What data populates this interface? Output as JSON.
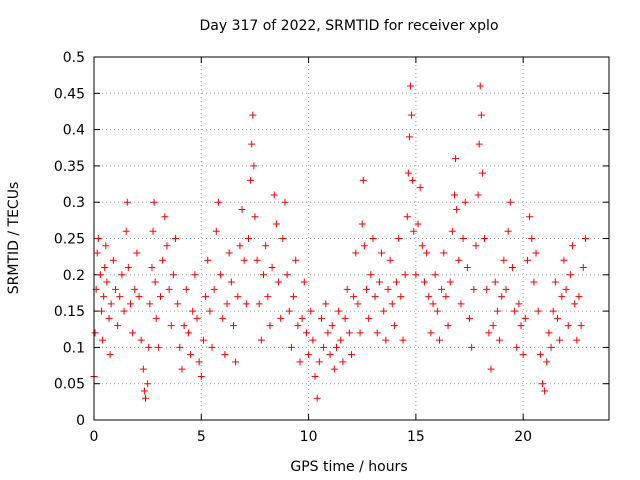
{
  "chart_data": {
    "type": "scatter",
    "title": "Day 317 of 2022, SRMTID for receiver xplo",
    "xlabel": "GPS time / hours",
    "ylabel": "SRMTID / TECUs",
    "xlim": [
      0,
      24
    ],
    "ylim": [
      0,
      0.5
    ],
    "x_ticks": [
      0,
      5,
      10,
      15,
      20
    ],
    "x_tick_labels": [
      "0",
      "5",
      "10",
      "15",
      "20"
    ],
    "y_ticks": [
      0,
      0.05,
      0.1,
      0.15,
      0.2,
      0.25,
      0.3,
      0.35,
      0.4,
      0.45,
      0.5
    ],
    "y_tick_labels": [
      "0",
      "0.05",
      "0.1",
      "0.15",
      "0.2",
      "0.25",
      "0.3",
      "0.35",
      "0.4",
      "0.45",
      "0.5"
    ],
    "grid": true,
    "marker": "plus",
    "marker_color": "#ff0000",
    "series": [
      {
        "name": "SRMTID",
        "points": [
          [
            0.0,
            0.06
          ],
          [
            0.05,
            0.12
          ],
          [
            0.1,
            0.18
          ],
          [
            0.15,
            0.23
          ],
          [
            0.2,
            0.25
          ],
          [
            0.3,
            0.2
          ],
          [
            0.35,
            0.15
          ],
          [
            0.4,
            0.11
          ],
          [
            0.45,
            0.17
          ],
          [
            0.5,
            0.21
          ],
          [
            0.55,
            0.24
          ],
          [
            0.6,
            0.19
          ],
          [
            0.7,
            0.14
          ],
          [
            0.75,
            0.09
          ],
          [
            0.8,
            0.16
          ],
          [
            0.9,
            0.22
          ],
          [
            1.0,
            0.18
          ],
          [
            1.1,
            0.13
          ],
          [
            1.2,
            0.17
          ],
          [
            1.3,
            0.2
          ],
          [
            1.4,
            0.15
          ],
          [
            1.5,
            0.26
          ],
          [
            1.55,
            0.3
          ],
          [
            1.6,
            0.21
          ],
          [
            1.7,
            0.16
          ],
          [
            1.8,
            0.12
          ],
          [
            1.9,
            0.18
          ],
          [
            2.0,
            0.23
          ],
          [
            2.1,
            0.17
          ],
          [
            2.2,
            0.11
          ],
          [
            2.3,
            0.07
          ],
          [
            2.35,
            0.04
          ],
          [
            2.4,
            0.03
          ],
          [
            2.5,
            0.05
          ],
          [
            2.55,
            0.1
          ],
          [
            2.6,
            0.16
          ],
          [
            2.7,
            0.21
          ],
          [
            2.75,
            0.26
          ],
          [
            2.8,
            0.3
          ],
          [
            2.85,
            0.19
          ],
          [
            2.9,
            0.14
          ],
          [
            3.0,
            0.1
          ],
          [
            3.1,
            0.17
          ],
          [
            3.2,
            0.22
          ],
          [
            3.3,
            0.28
          ],
          [
            3.4,
            0.24
          ],
          [
            3.5,
            0.18
          ],
          [
            3.6,
            0.13
          ],
          [
            3.7,
            0.2
          ],
          [
            3.8,
            0.25
          ],
          [
            3.9,
            0.16
          ],
          [
            4.0,
            0.1
          ],
          [
            4.1,
            0.07
          ],
          [
            4.2,
            0.13
          ],
          [
            4.3,
            0.18
          ],
          [
            4.4,
            0.12
          ],
          [
            4.5,
            0.09
          ],
          [
            4.6,
            0.15
          ],
          [
            4.7,
            0.2
          ],
          [
            4.8,
            0.14
          ],
          [
            4.9,
            0.08
          ],
          [
            5.0,
            0.06
          ],
          [
            5.1,
            0.11
          ],
          [
            5.2,
            0.17
          ],
          [
            5.3,
            0.22
          ],
          [
            5.4,
            0.15
          ],
          [
            5.5,
            0.1
          ],
          [
            5.6,
            0.18
          ],
          [
            5.7,
            0.26
          ],
          [
            5.8,
            0.3
          ],
          [
            5.9,
            0.2
          ],
          [
            6.0,
            0.14
          ],
          [
            6.1,
            0.09
          ],
          [
            6.2,
            0.16
          ],
          [
            6.3,
            0.23
          ],
          [
            6.4,
            0.19
          ],
          [
            6.5,
            0.13
          ],
          [
            6.6,
            0.08
          ],
          [
            6.7,
            0.17
          ],
          [
            6.8,
            0.24
          ],
          [
            6.9,
            0.29
          ],
          [
            7.0,
            0.22
          ],
          [
            7.1,
            0.16
          ],
          [
            7.2,
            0.25
          ],
          [
            7.3,
            0.33
          ],
          [
            7.35,
            0.38
          ],
          [
            7.4,
            0.42
          ],
          [
            7.45,
            0.35
          ],
          [
            7.5,
            0.28
          ],
          [
            7.6,
            0.22
          ],
          [
            7.7,
            0.16
          ],
          [
            7.8,
            0.11
          ],
          [
            7.9,
            0.2
          ],
          [
            8.0,
            0.24
          ],
          [
            8.1,
            0.17
          ],
          [
            8.2,
            0.13
          ],
          [
            8.3,
            0.21
          ],
          [
            8.4,
            0.31
          ],
          [
            8.5,
            0.27
          ],
          [
            8.6,
            0.19
          ],
          [
            8.7,
            0.14
          ],
          [
            8.8,
            0.25
          ],
          [
            8.9,
            0.3
          ],
          [
            9.0,
            0.2
          ],
          [
            9.1,
            0.15
          ],
          [
            9.2,
            0.1
          ],
          [
            9.3,
            0.17
          ],
          [
            9.4,
            0.22
          ],
          [
            9.5,
            0.13
          ],
          [
            9.6,
            0.08
          ],
          [
            9.7,
            0.14
          ],
          [
            9.8,
            0.19
          ],
          [
            9.9,
            0.12
          ],
          [
            10.0,
            0.09
          ],
          [
            10.1,
            0.15
          ],
          [
            10.2,
            0.11
          ],
          [
            10.3,
            0.06
          ],
          [
            10.4,
            0.03
          ],
          [
            10.5,
            0.08
          ],
          [
            10.6,
            0.14
          ],
          [
            10.7,
            0.1
          ],
          [
            10.8,
            0.16
          ],
          [
            10.9,
            0.12
          ],
          [
            11.0,
            0.09
          ],
          [
            11.1,
            0.13
          ],
          [
            11.2,
            0.07
          ],
          [
            11.3,
            0.1
          ],
          [
            11.4,
            0.15
          ],
          [
            11.5,
            0.11
          ],
          [
            11.6,
            0.08
          ],
          [
            11.7,
            0.14
          ],
          [
            11.8,
            0.18
          ],
          [
            11.9,
            0.12
          ],
          [
            12.0,
            0.09
          ],
          [
            12.1,
            0.17
          ],
          [
            12.2,
            0.23
          ],
          [
            12.3,
            0.16
          ],
          [
            12.4,
            0.12
          ],
          [
            12.5,
            0.27
          ],
          [
            12.55,
            0.33
          ],
          [
            12.6,
            0.24
          ],
          [
            12.7,
            0.18
          ],
          [
            12.8,
            0.14
          ],
          [
            12.9,
            0.2
          ],
          [
            13.0,
            0.25
          ],
          [
            13.1,
            0.17
          ],
          [
            13.2,
            0.12
          ],
          [
            13.3,
            0.19
          ],
          [
            13.4,
            0.23
          ],
          [
            13.5,
            0.15
          ],
          [
            13.6,
            0.11
          ],
          [
            13.7,
            0.18
          ],
          [
            13.8,
            0.22
          ],
          [
            13.9,
            0.16
          ],
          [
            14.0,
            0.13
          ],
          [
            14.1,
            0.19
          ],
          [
            14.2,
            0.25
          ],
          [
            14.3,
            0.17
          ],
          [
            14.4,
            0.11
          ],
          [
            14.5,
            0.2
          ],
          [
            14.6,
            0.28
          ],
          [
            14.65,
            0.34
          ],
          [
            14.7,
            0.39
          ],
          [
            14.75,
            0.46
          ],
          [
            14.8,
            0.42
          ],
          [
            14.85,
            0.33
          ],
          [
            14.9,
            0.26
          ],
          [
            15.0,
            0.2
          ],
          [
            15.1,
            0.27
          ],
          [
            15.2,
            0.32
          ],
          [
            15.3,
            0.24
          ],
          [
            15.4,
            0.19
          ],
          [
            15.5,
            0.23
          ],
          [
            15.6,
            0.17
          ],
          [
            15.7,
            0.12
          ],
          [
            15.8,
            0.16
          ],
          [
            15.9,
            0.2
          ],
          [
            16.0,
            0.15
          ],
          [
            16.1,
            0.11
          ],
          [
            16.2,
            0.18
          ],
          [
            16.3,
            0.23
          ],
          [
            16.4,
            0.17
          ],
          [
            16.5,
            0.13
          ],
          [
            16.6,
            0.19
          ],
          [
            16.7,
            0.26
          ],
          [
            16.8,
            0.31
          ],
          [
            16.85,
            0.36
          ],
          [
            16.9,
            0.29
          ],
          [
            17.0,
            0.22
          ],
          [
            17.1,
            0.16
          ],
          [
            17.2,
            0.25
          ],
          [
            17.3,
            0.3
          ],
          [
            17.4,
            0.21
          ],
          [
            17.5,
            0.14
          ],
          [
            17.6,
            0.1
          ],
          [
            17.7,
            0.18
          ],
          [
            17.8,
            0.24
          ],
          [
            17.9,
            0.31
          ],
          [
            17.95,
            0.38
          ],
          [
            18.0,
            0.46
          ],
          [
            18.05,
            0.42
          ],
          [
            18.1,
            0.34
          ],
          [
            18.2,
            0.25
          ],
          [
            18.3,
            0.18
          ],
          [
            18.4,
            0.12
          ],
          [
            18.5,
            0.07
          ],
          [
            18.6,
            0.13
          ],
          [
            18.7,
            0.19
          ],
          [
            18.8,
            0.15
          ],
          [
            18.9,
            0.11
          ],
          [
            19.0,
            0.17
          ],
          [
            19.1,
            0.22
          ],
          [
            19.2,
            0.18
          ],
          [
            19.3,
            0.26
          ],
          [
            19.4,
            0.3
          ],
          [
            19.5,
            0.21
          ],
          [
            19.6,
            0.15
          ],
          [
            19.7,
            0.1
          ],
          [
            19.8,
            0.16
          ],
          [
            19.9,
            0.13
          ],
          [
            20.0,
            0.09
          ],
          [
            20.1,
            0.14
          ],
          [
            20.2,
            0.22
          ],
          [
            20.3,
            0.28
          ],
          [
            20.4,
            0.25
          ],
          [
            20.5,
            0.19
          ],
          [
            20.6,
            0.23
          ],
          [
            20.7,
            0.15
          ],
          [
            20.8,
            0.09
          ],
          [
            20.9,
            0.05
          ],
          [
            21.0,
            0.04
          ],
          [
            21.1,
            0.08
          ],
          [
            21.2,
            0.12
          ],
          [
            21.3,
            0.1
          ],
          [
            21.4,
            0.15
          ],
          [
            21.5,
            0.19
          ],
          [
            21.6,
            0.14
          ],
          [
            21.7,
            0.11
          ],
          [
            21.8,
            0.17
          ],
          [
            21.9,
            0.22
          ],
          [
            22.0,
            0.18
          ],
          [
            22.1,
            0.13
          ],
          [
            22.2,
            0.2
          ],
          [
            22.3,
            0.24
          ],
          [
            22.4,
            0.16
          ],
          [
            22.5,
            0.11
          ],
          [
            22.6,
            0.17
          ],
          [
            22.7,
            0.13
          ],
          [
            22.8,
            0.21
          ],
          [
            22.9,
            0.25
          ]
        ]
      }
    ]
  }
}
